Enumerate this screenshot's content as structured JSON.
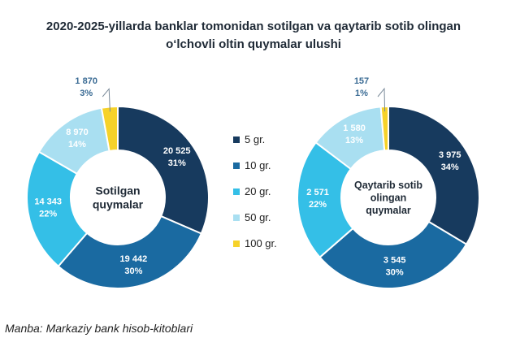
{
  "title_line1": "2020-2025-yillarda banklar tomonidan sotilgan va qaytarib sotib olingan",
  "title_line2": "o‘lchovli oltin quymalar ulushi",
  "source": "Manba: Markaziy bank hisob-kitoblari",
  "colors": [
    "#173a5e",
    "#1a6aa1",
    "#34bfe7",
    "#a9dff1",
    "#f6d22a"
  ],
  "chart_data": [
    {
      "type": "pie",
      "donut": true,
      "center_label": [
        "Sotilgan",
        "quymalar"
      ],
      "categories": [
        "5 gr.",
        "10 gr.",
        "20 gr.",
        "50 gr.",
        "100 gr."
      ],
      "values": [
        20525,
        19442,
        14343,
        8970,
        1870
      ],
      "value_labels": [
        "20 525",
        "19 442",
        "14 343",
        "8 970",
        "1 870"
      ],
      "percent_labels": [
        "31%",
        "30%",
        "22%",
        "14%",
        "3%"
      ]
    },
    {
      "type": "pie",
      "donut": true,
      "center_label": [
        "Qaytarib sotib",
        "olingan",
        "quymalar"
      ],
      "categories": [
        "5 gr.",
        "10 gr.",
        "20 gr.",
        "50 gr.",
        "100 gr."
      ],
      "values": [
        3975,
        3545,
        2571,
        1580,
        157
      ],
      "value_labels": [
        "3 975",
        "3 545",
        "2 571",
        "1 580",
        "157"
      ],
      "percent_labels": [
        "34%",
        "30%",
        "22%",
        "13%",
        "1%"
      ]
    }
  ],
  "legend": [
    "5 gr.",
    "10 gr.",
    "20 gr.",
    "50 gr.",
    "100 gr."
  ]
}
